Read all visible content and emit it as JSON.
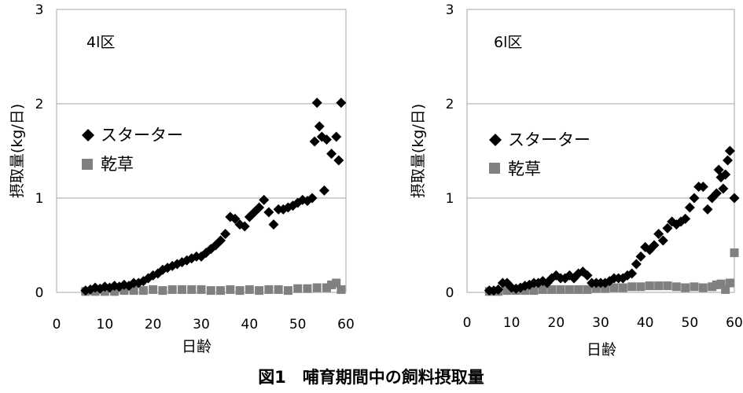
{
  "caption": "図1　哺育期間中の飼料摂取量",
  "chart_data": [
    {
      "type": "scatter",
      "panel_label": "4l区",
      "xlabel": "日齢",
      "ylabel": "摂取量(kg/日)",
      "xlim": [
        0,
        60
      ],
      "ylim": [
        0,
        3
      ],
      "xticks": [
        "0",
        "10",
        "20",
        "30",
        "40",
        "50",
        "60"
      ],
      "yticks": [
        "0",
        "1",
        "2",
        "3"
      ],
      "grid": "horizontal",
      "legend_position": "middle-left",
      "series": [
        {
          "name": "スターター",
          "marker": "diamond",
          "color": "#000000",
          "x": [
            6,
            7,
            8,
            9,
            10,
            11,
            12,
            13,
            14,
            15,
            16,
            17,
            18,
            19,
            20,
            21,
            22,
            23,
            24,
            25,
            26,
            27,
            28,
            29,
            30,
            31,
            32,
            33,
            34,
            35,
            36,
            37,
            38,
            39,
            40,
            41,
            42,
            43,
            44,
            45,
            46,
            47,
            48,
            49,
            50,
            51,
            52,
            53,
            53.5,
            54,
            54.5,
            55,
            55.5,
            56,
            57,
            58,
            58.5,
            59
          ],
          "y": [
            0.02,
            0.03,
            0.05,
            0.04,
            0.06,
            0.05,
            0.07,
            0.06,
            0.08,
            0.07,
            0.1,
            0.1,
            0.12,
            0.15,
            0.18,
            0.2,
            0.24,
            0.26,
            0.28,
            0.3,
            0.32,
            0.34,
            0.36,
            0.38,
            0.38,
            0.42,
            0.46,
            0.5,
            0.55,
            0.62,
            0.8,
            0.78,
            0.72,
            0.7,
            0.8,
            0.85,
            0.9,
            0.98,
            0.85,
            0.72,
            0.88,
            0.88,
            0.9,
            0.92,
            0.95,
            0.98,
            0.97,
            1.0,
            1.6,
            2.01,
            1.76,
            1.65,
            1.08,
            1.62,
            1.47,
            1.65,
            1.4,
            2.01
          ]
        },
        {
          "name": "乾草",
          "marker": "square",
          "color": "#808080",
          "x": [
            6,
            8,
            10,
            12,
            14,
            16,
            18,
            20,
            22,
            24,
            26,
            28,
            30,
            32,
            34,
            36,
            38,
            40,
            42,
            44,
            46,
            48,
            50,
            52,
            54,
            56,
            57,
            58,
            59
          ],
          "y": [
            0.01,
            0.01,
            0.01,
            0.01,
            0.02,
            0.02,
            0.02,
            0.03,
            0.02,
            0.03,
            0.03,
            0.03,
            0.03,
            0.02,
            0.02,
            0.03,
            0.02,
            0.03,
            0.02,
            0.03,
            0.03,
            0.02,
            0.04,
            0.04,
            0.05,
            0.05,
            0.08,
            0.1,
            0.03
          ]
        }
      ]
    },
    {
      "type": "scatter",
      "panel_label": "6l区",
      "xlabel": "日齢",
      "ylabel": "摂取量(kg/日)",
      "xlim": [
        0,
        60
      ],
      "ylim": [
        0,
        3
      ],
      "xticks": [
        "0",
        "10",
        "20",
        "30",
        "40",
        "50",
        "60"
      ],
      "yticks": [
        "0",
        "1",
        "2",
        "3"
      ],
      "grid": "horizontal",
      "legend_position": "middle-left",
      "series": [
        {
          "name": "スターター",
          "marker": "diamond",
          "color": "#000000",
          "x": [
            5,
            6,
            7,
            8,
            9,
            10,
            11,
            12,
            13,
            14,
            15,
            16,
            17,
            18,
            19,
            20,
            21,
            22,
            23,
            24,
            25,
            26,
            27,
            28,
            29,
            30,
            31,
            32,
            33,
            34,
            35,
            36,
            37,
            38,
            39,
            40,
            41,
            42,
            43,
            44,
            45,
            46,
            47,
            48,
            49,
            50,
            51,
            52,
            53,
            54,
            55,
            56,
            56.5,
            57,
            57.5,
            58,
            58.5,
            59,
            60
          ],
          "y": [
            0.02,
            0.02,
            0.03,
            0.1,
            0.1,
            0.05,
            0.04,
            0.05,
            0.07,
            0.08,
            0.1,
            0.1,
            0.12,
            0.1,
            0.15,
            0.18,
            0.15,
            0.15,
            0.18,
            0.15,
            0.2,
            0.22,
            0.18,
            0.1,
            0.1,
            0.1,
            0.1,
            0.12,
            0.15,
            0.15,
            0.15,
            0.18,
            0.2,
            0.3,
            0.38,
            0.48,
            0.45,
            0.5,
            0.62,
            0.55,
            0.68,
            0.75,
            0.72,
            0.75,
            0.78,
            0.9,
            1.0,
            1.12,
            1.12,
            0.88,
            1.0,
            1.05,
            1.3,
            1.22,
            1.1,
            1.25,
            1.4,
            1.5,
            1.0
          ]
        },
        {
          "name": "乾草",
          "marker": "square",
          "color": "#808080",
          "x": [
            5,
            7,
            9,
            11,
            13,
            15,
            17,
            19,
            21,
            23,
            25,
            27,
            29,
            31,
            33,
            35,
            37,
            39,
            41,
            43,
            45,
            47,
            49,
            51,
            53,
            55,
            56,
            57,
            58,
            59,
            60
          ],
          "y": [
            0.01,
            0.01,
            0.02,
            0.02,
            0.02,
            0.02,
            0.03,
            0.03,
            0.03,
            0.03,
            0.03,
            0.03,
            0.04,
            0.04,
            0.05,
            0.05,
            0.06,
            0.06,
            0.07,
            0.07,
            0.07,
            0.06,
            0.05,
            0.06,
            0.05,
            0.06,
            0.08,
            0.09,
            0.03,
            0.1,
            0.42
          ]
        }
      ]
    }
  ]
}
